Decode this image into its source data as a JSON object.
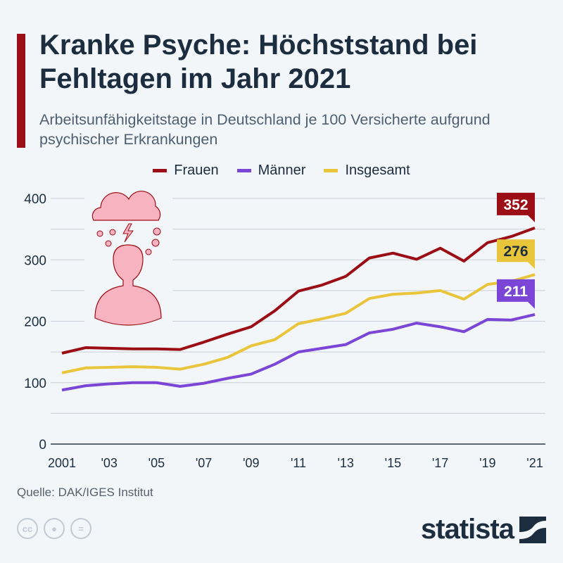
{
  "header": {
    "title": "Kranke Psyche: Höchststand bei Fehltagen im Jahr 2021",
    "subtitle": "Arbeitsunfähigkeitstage in Deutschland je 100 Versicherte aufgrund psychischer Erkrankungen"
  },
  "footer": {
    "source": "Quelle: DAK/IGES Institut",
    "logo": "statista",
    "license_icons": [
      "cc-icon",
      "attribution-icon",
      "no-derivatives-icon"
    ],
    "cc_label": "cc",
    "nd_label": "="
  },
  "chart_data": {
    "type": "line",
    "title": "Kranke Psyche: Höchststand bei Fehltagen im Jahr 2021",
    "subtitle": "Arbeitsunfähigkeitstage in Deutschland je 100 Versicherte aufgrund psychischer Erkrankungen",
    "x": [
      2001,
      2002,
      2003,
      2004,
      2005,
      2006,
      2007,
      2008,
      2009,
      2010,
      2011,
      2012,
      2013,
      2014,
      2015,
      2016,
      2017,
      2018,
      2019,
      2020,
      2021
    ],
    "x_tick_labels": [
      "2001",
      "'03",
      "'05",
      "'07",
      "'09",
      "'11",
      "'13",
      "'15",
      "'17",
      "'19",
      "'21"
    ],
    "y_ticks": [
      0,
      100,
      200,
      300,
      400
    ],
    "ylim": [
      0,
      400
    ],
    "grid": true,
    "legend_position": "top",
    "series": [
      {
        "name": "Frauen",
        "color": "#9b0e15",
        "values": [
          148,
          157,
          156,
          155,
          155,
          154,
          166,
          179,
          191,
          217,
          249,
          259,
          273,
          303,
          311,
          301,
          319,
          298,
          328,
          338,
          352
        ],
        "end_label": "352"
      },
      {
        "name": "Männer",
        "color": "#7b45d6",
        "values": [
          88,
          95,
          98,
          100,
          100,
          94,
          99,
          107,
          114,
          130,
          150,
          156,
          162,
          181,
          187,
          197,
          191,
          183,
          203,
          202,
          211
        ],
        "end_label": "211"
      },
      {
        "name": "Insgesamt",
        "color": "#e8c53a",
        "values": [
          116,
          124,
          125,
          126,
          125,
          122,
          130,
          141,
          160,
          170,
          196,
          204,
          213,
          237,
          244,
          246,
          250,
          236,
          260,
          265,
          276
        ],
        "end_label": "276"
      }
    ],
    "illustration": "woman-under-rain-cloud-icon"
  }
}
